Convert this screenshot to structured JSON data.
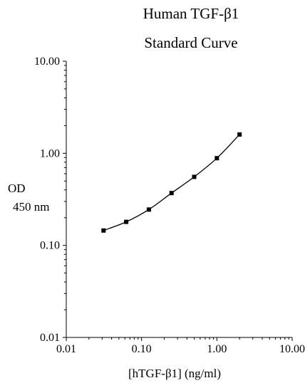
{
  "chart_data": {
    "type": "line",
    "title": "Human TGF-β1",
    "subtitle": "Standard Curve",
    "xlabel": "[hTGF-β1] (ng/ml)",
    "ylabel_line1": "OD",
    "ylabel_line2": "450 nm",
    "x_scale": "log",
    "y_scale": "log",
    "xlim": [
      0.01,
      10
    ],
    "ylim": [
      0.01,
      10
    ],
    "x_ticks": [
      0.01,
      0.1,
      1,
      10
    ],
    "x_tick_labels": [
      "0.01",
      "0.10",
      "1.00",
      "10.00"
    ],
    "y_ticks": [
      0.01,
      0.1,
      1,
      10
    ],
    "y_tick_labels": [
      "0.01",
      "0.10",
      "1.00",
      "10.00"
    ],
    "grid": false,
    "legend": "none",
    "marker": "square",
    "series": [
      {
        "x": [
          0.03125,
          0.0625,
          0.125,
          0.25,
          0.5,
          1.0,
          2.0
        ],
        "y": [
          0.145,
          0.18,
          0.245,
          0.37,
          0.555,
          0.885,
          1.6
        ]
      }
    ],
    "colors": {
      "line": "#000000",
      "marker": "#000000"
    }
  }
}
